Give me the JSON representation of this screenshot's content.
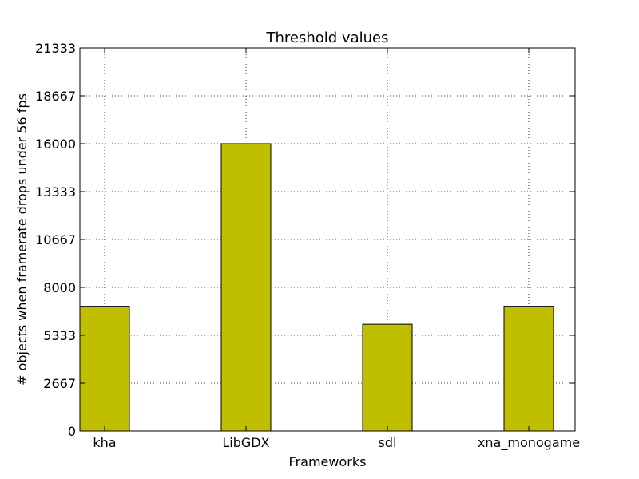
{
  "chart_data": {
    "type": "bar",
    "title": "Threshold values",
    "xlabel": "Frameworks",
    "ylabel": "# objects when framerate drops under 56 fps",
    "categories": [
      "kha",
      "LibGDX",
      "sdl",
      "xna_monogame"
    ],
    "values": [
      6950,
      16000,
      5950,
      6950
    ],
    "ylim": [
      0,
      21333
    ],
    "yticks": [
      0,
      2667,
      5333,
      8000,
      10667,
      13333,
      16000,
      18667,
      21333
    ],
    "ytick_labels": [
      "0",
      "2667",
      "5333",
      "8000",
      "10667",
      "13333",
      "16000",
      "18667",
      "21333"
    ],
    "grid": true,
    "bar_color": "#bfbf00",
    "edge_color": "#000000"
  }
}
